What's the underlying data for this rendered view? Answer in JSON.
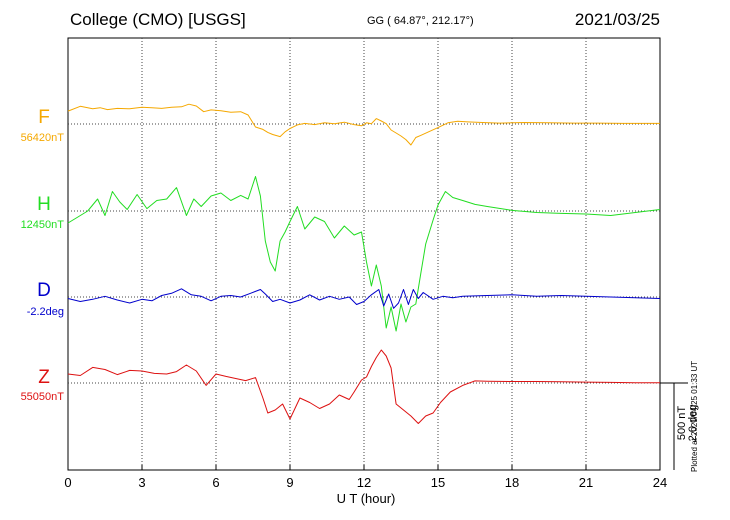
{
  "header": {
    "station": "College (CMO)  [USGS]",
    "coords": "GG ( 64.87°, 212.17°)",
    "date": "2021/03/25"
  },
  "footer": {
    "plotted": "Plotted at 2021/04/25 01:33 UT",
    "scale_nT": "500 nT",
    "scale_deg": "2.0 deg"
  },
  "chart_data": {
    "type": "line",
    "title": "College (CMO)  [USGS]",
    "xlabel": "U T (hour)",
    "ylabel": "",
    "xlim": [
      0,
      24
    ],
    "xticks": [
      0,
      3,
      6,
      9,
      12,
      15,
      18,
      21,
      24
    ],
    "grid": true,
    "series": [
      {
        "name": "F",
        "baseline_label": "56420nT",
        "color": "#f5a800",
        "x": [
          0,
          0.5,
          1,
          1.3,
          1.6,
          2,
          2.5,
          3,
          3.4,
          3.8,
          4.2,
          4.6,
          4.9,
          5.2,
          5.5,
          5.8,
          6.2,
          6.6,
          7,
          7.3,
          7.6,
          7.9,
          8.1,
          8.3,
          8.6,
          8.8,
          9.0,
          9.3,
          9.6,
          10,
          10.4,
          10.8,
          11.2,
          11.6,
          11.9,
          12.1,
          12.3,
          12.5,
          12.7,
          12.9,
          13.1,
          13.3,
          13.5,
          13.7,
          13.9,
          14.1,
          14.3,
          14.6,
          15.0,
          15.4,
          15.8,
          16.2,
          16.8,
          17.5,
          18.5,
          19.5,
          20.5,
          21.5,
          22.5,
          23.5,
          24
        ],
        "values": [
          430,
          590,
          510,
          545,
          480,
          520,
          505,
          560,
          540,
          520,
          555,
          575,
          660,
          600,
          410,
          470,
          440,
          390,
          410,
          300,
          -100,
          -180,
          -280,
          -350,
          -420,
          -260,
          -150,
          -30,
          20,
          -20,
          40,
          10,
          60,
          -20,
          -60,
          40,
          10,
          180,
          100,
          10,
          -200,
          -300,
          -400,
          -520,
          -700,
          -450,
          -380,
          -270,
          -120,
          40,
          90,
          70,
          50,
          30,
          50,
          40,
          30,
          30,
          20,
          20,
          20
        ]
      },
      {
        "name": "H",
        "baseline_label": "12450nT",
        "color": "#22dd22",
        "x": [
          0,
          0.4,
          0.8,
          1.2,
          1.5,
          1.8,
          2.1,
          2.4,
          2.8,
          3.2,
          3.6,
          4.0,
          4.4,
          4.8,
          5.1,
          5.4,
          5.8,
          6.2,
          6.6,
          7.0,
          7.3,
          7.6,
          7.8,
          8.0,
          8.2,
          8.4,
          8.6,
          8.8,
          9.0,
          9.3,
          9.6,
          10.0,
          10.4,
          10.8,
          11.2,
          11.6,
          11.9,
          12.1,
          12.3,
          12.5,
          12.7,
          12.9,
          13.1,
          13.3,
          13.5,
          13.7,
          13.9,
          14.1,
          14.3,
          14.5,
          14.8,
          15.0,
          15.3,
          15.6,
          16.0,
          16.5,
          17.0,
          18.0,
          19.0,
          20.0,
          21.0,
          22.0,
          23.0,
          24
        ],
        "values": [
          -400,
          -200,
          0,
          400,
          -150,
          650,
          300,
          50,
          550,
          80,
          350,
          400,
          780,
          -150,
          400,
          150,
          500,
          600,
          350,
          520,
          400,
          1150,
          500,
          -1000,
          -1700,
          -2000,
          -1000,
          -700,
          -350,
          150,
          -600,
          -200,
          -350,
          -900,
          -500,
          -800,
          -700,
          -1700,
          -2500,
          -1800,
          -2500,
          -3900,
          -3200,
          -4000,
          -3100,
          -3700,
          -3200,
          -3100,
          -2100,
          -1100,
          -300,
          200,
          650,
          450,
          350,
          220,
          150,
          20,
          -50,
          -80,
          -100,
          -150,
          -50,
          50
        ]
      },
      {
        "name": "D",
        "baseline_label": "-2.2deg",
        "color": "#0000cc",
        "x": [
          0,
          0.5,
          1,
          1.5,
          2,
          2.5,
          3,
          3.4,
          3.8,
          4.2,
          4.6,
          5.0,
          5.4,
          5.8,
          6.2,
          6.6,
          7.0,
          7.4,
          7.8,
          8.0,
          8.3,
          8.6,
          9.0,
          9.4,
          9.8,
          10.2,
          10.6,
          11,
          11.4,
          11.7,
          12.0,
          12.3,
          12.6,
          12.8,
          13.0,
          13.2,
          13.4,
          13.6,
          13.8,
          14.0,
          14.2,
          14.4,
          14.8,
          15.2,
          15.6,
          16,
          17,
          18,
          19,
          20,
          21,
          22,
          23,
          24
        ],
        "values": [
          -0.2,
          -0.6,
          -0.3,
          0.1,
          -0.4,
          -0.8,
          -0.3,
          -0.5,
          0.2,
          0.5,
          1.1,
          0.3,
          0.1,
          -0.5,
          0.1,
          0.2,
          0.0,
          0.5,
          1.0,
          0.4,
          -0.6,
          -0.3,
          -0.8,
          -0.4,
          0.3,
          -0.4,
          0.1,
          -0.3,
          0.0,
          -1.0,
          -0.6,
          0.3,
          1.0,
          -1.2,
          0.4,
          -1.5,
          -0.8,
          1.0,
          -1.0,
          1.0,
          -0.2,
          0.6,
          -0.3,
          0.1,
          -0.1,
          0.1,
          0.2,
          0.3,
          0.1,
          0.2,
          0.1,
          0.0,
          -0.1,
          -0.2
        ]
      },
      {
        "name": "Z",
        "baseline_label": "55050nT",
        "color": "#dd1111",
        "x": [
          0,
          0.5,
          1,
          1.5,
          2,
          2.5,
          3,
          3.5,
          4,
          4.4,
          4.8,
          5.2,
          5.6,
          6.0,
          6.4,
          6.8,
          7.2,
          7.6,
          7.9,
          8.1,
          8.4,
          8.7,
          9.0,
          9.4,
          9.8,
          10.2,
          10.6,
          11,
          11.4,
          11.6,
          11.9,
          12.1,
          12.3,
          12.5,
          12.7,
          12.9,
          13.1,
          13.3,
          13.6,
          13.9,
          14.2,
          14.5,
          14.8,
          15.1,
          15.5,
          16.0,
          16.5,
          17,
          18,
          19,
          20,
          21,
          22,
          23,
          24
        ],
        "values": [
          300,
          250,
          520,
          450,
          280,
          420,
          400,
          320,
          300,
          380,
          600,
          400,
          -80,
          300,
          220,
          150,
          80,
          180,
          -500,
          -1000,
          -900,
          -700,
          -1200,
          -500,
          -650,
          -850,
          -700,
          -400,
          -550,
          -300,
          100,
          200,
          550,
          850,
          1100,
          900,
          500,
          -700,
          -900,
          -1100,
          -1350,
          -1100,
          -1000,
          -650,
          -300,
          -80,
          70,
          60,
          50,
          50,
          40,
          30,
          20,
          10,
          10
        ]
      }
    ]
  }
}
